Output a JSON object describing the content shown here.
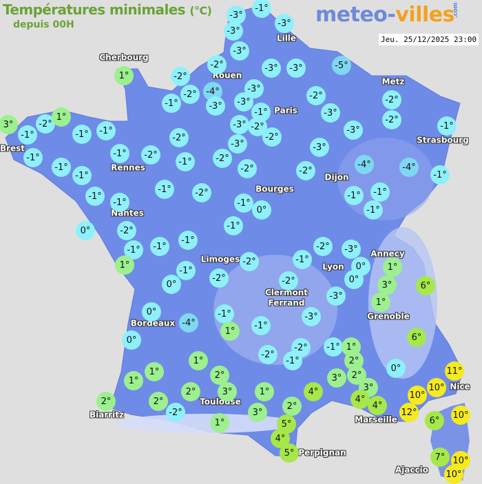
{
  "header": {
    "title": "Températures minimales",
    "unit": "(°C)",
    "subtitle": "depuis 00H",
    "logo": {
      "part1": "meteo-",
      "part2": "villes",
      "suffix": ".com"
    },
    "datetime": "Jeu. 25/12/2025 23:00"
  },
  "colors": {
    "background": "#e0dfe0",
    "land": "#6f8be8",
    "cold": "#8ef0fb",
    "very_cold": "#7fd8f2",
    "mild": "#9cf08f",
    "warm": "#a6e84a",
    "hot": "#f5ea1f",
    "title": "#6aa336",
    "logo_blue": "#6e8ad8",
    "logo_orange": "#f2a21d"
  },
  "cities": [
    "Cherbourg",
    "Brest",
    "Rennes",
    "Nantes",
    "Rouen",
    "Lille",
    "Paris",
    "Metz",
    "Strasbourg",
    "Dijon",
    "Bourges",
    "Limoges",
    "Lyon",
    "Annecy",
    "Clermont\nFerrand",
    "Grenoble",
    "Bordeaux",
    "Toulouse",
    "Biarritz",
    "Marseille",
    "Nice",
    "Ajaccio",
    "Perpignan"
  ],
  "temperatures": [
    "3°",
    "-1°",
    "-2°",
    "1°",
    "1°",
    "-1°",
    "-1°",
    "-1°",
    "-1°",
    "-1°",
    "-1°",
    "-1°",
    "-1°",
    "-2°",
    "-2°",
    "-2°",
    "-2°",
    "-1°",
    "-1°",
    "-2°",
    "-1°",
    "-2°",
    "-2°",
    "0°",
    "-2°",
    "-1°",
    "1°",
    "-1°",
    "-1°",
    "-1°",
    "-1°",
    "0°",
    "-1°",
    "0°",
    "-2°",
    "-2°",
    "0°",
    "-4°",
    "0°",
    "-1°",
    "1°",
    "-1°",
    "-2°",
    "-2°",
    "-1°",
    "-3°",
    "-3°",
    "-2°",
    "-3°",
    "0°",
    "0°",
    "1°",
    "3°",
    "6°",
    "1°",
    "6°",
    "0°",
    "-2°",
    "-1°",
    "-1°",
    "1°",
    "2°",
    "2°",
    "3°",
    "3°",
    "4°",
    "4°",
    "4°",
    "2°",
    "1°",
    "3°",
    "3°",
    "2°",
    "1°",
    "2°",
    "1°",
    "-2°",
    "2°",
    "1°",
    "1°",
    "2°",
    "5°",
    "4°",
    "5°",
    "10°",
    "12°",
    "10°",
    "11°",
    "6°",
    "10°",
    "7°",
    "10°",
    "10°",
    "-3°",
    "-3°",
    "-1°",
    "-3°",
    "-3°",
    "-2°",
    "-4°",
    "-3°",
    "-3°",
    "-3°",
    "-1°",
    "-2°",
    "-3°",
    "-3°",
    "-2°",
    "-3°",
    "-3°",
    "-5°",
    "-2°",
    "-3°",
    "-3°",
    "-3°",
    "-2°",
    "-4°",
    "-2°",
    "-2°",
    "-1°",
    "-4°",
    "-1°",
    "-1°",
    "-1°",
    "-1°"
  ]
}
